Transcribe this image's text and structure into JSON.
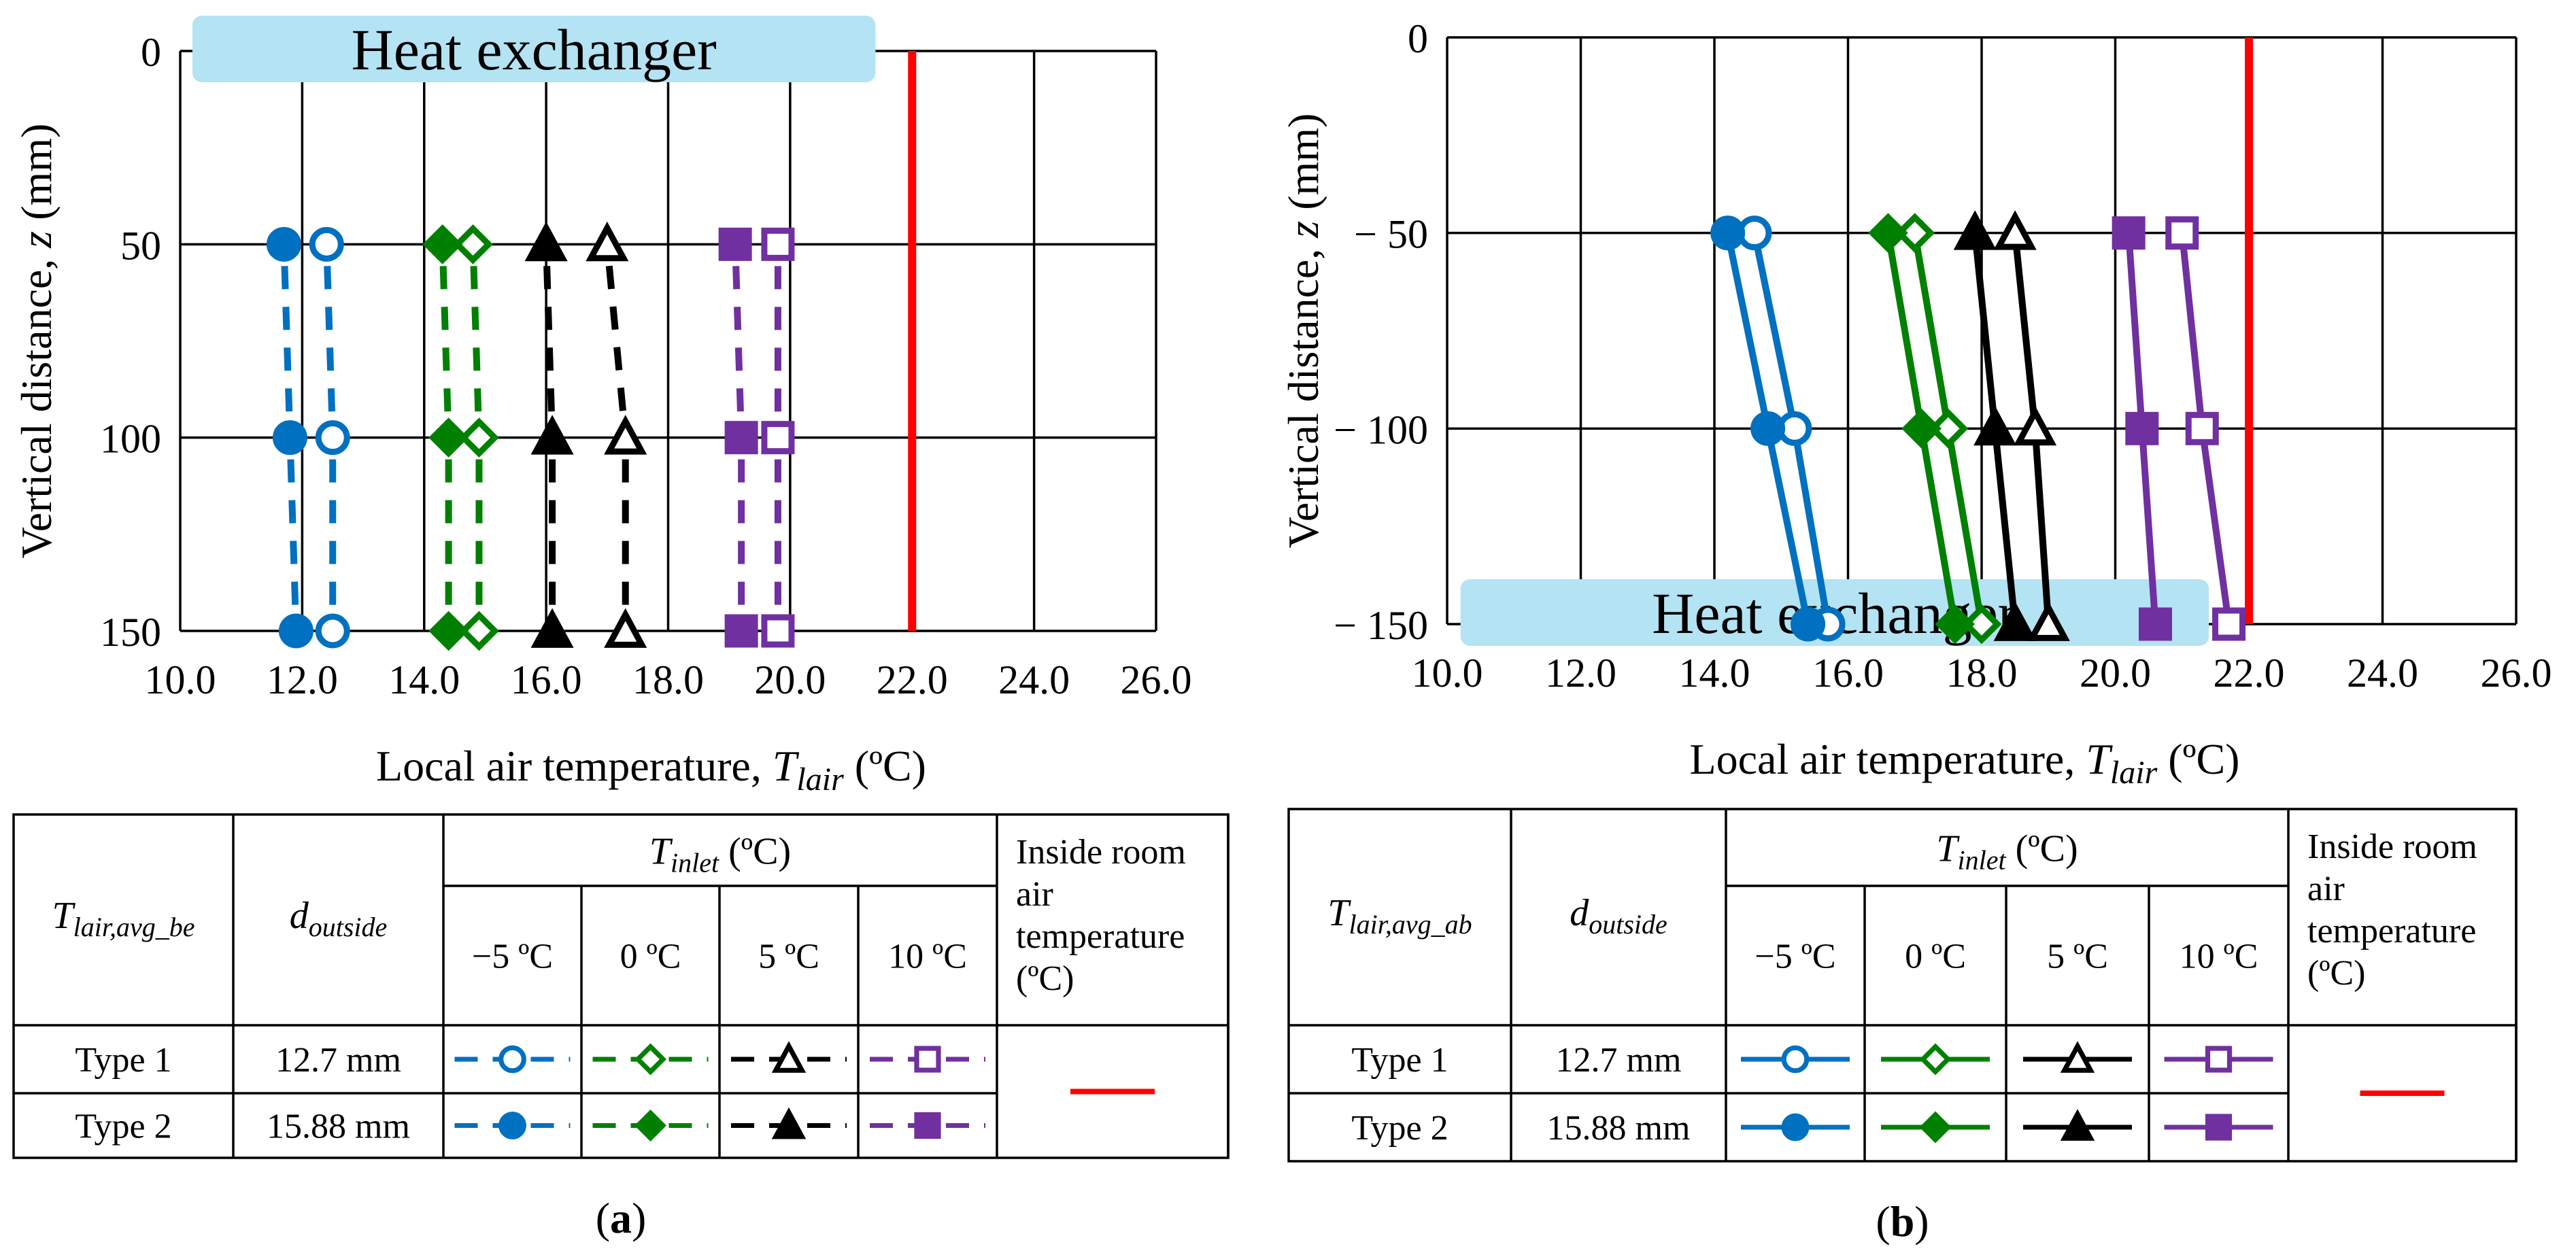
{
  "chart_data": [
    {
      "type": "line",
      "panel": "a",
      "banner": "Heat exchanger",
      "xlabel": "Local air temperature, ",
      "xlabel_var": "T_lair",
      "xlabel_unit": "(ºC)",
      "ylabel": "Vertical distance, z (mm)",
      "xlim": [
        10.0,
        26.0
      ],
      "ylim": [
        0,
        150
      ],
      "y_inverted": true,
      "xticks": [
        "10.0",
        "12.0",
        "14.0",
        "16.0",
        "18.0",
        "20.0",
        "22.0",
        "24.0",
        "26.0"
      ],
      "yticks": [
        "0",
        "50",
        "100",
        "150"
      ],
      "grid": true,
      "line_style": "dashed",
      "room_air_temperature": 22.0,
      "series": [
        {
          "type": "Type 1",
          "inlet": "−5 ºC",
          "marker": "circle-open",
          "color": "#0070c0",
          "x": [
            12.4,
            12.5,
            12.5
          ],
          "y": [
            50,
            100,
            150
          ]
        },
        {
          "type": "Type 2",
          "inlet": "−5 ºC",
          "marker": "circle-filled",
          "color": "#0070c0",
          "x": [
            11.7,
            11.8,
            11.9
          ],
          "y": [
            50,
            100,
            150
          ]
        },
        {
          "type": "Type 1",
          "inlet": "0 ºC",
          "marker": "diamond-open",
          "color": "#008000",
          "x": [
            14.8,
            14.9,
            14.9
          ],
          "y": [
            50,
            100,
            150
          ]
        },
        {
          "type": "Type 2",
          "inlet": "0 ºC",
          "marker": "diamond-filled",
          "color": "#008000",
          "x": [
            14.3,
            14.4,
            14.4
          ],
          "y": [
            50,
            100,
            150
          ]
        },
        {
          "type": "Type 1",
          "inlet": "5 ºC",
          "marker": "triangle-open",
          "color": "#000000",
          "x": [
            17.0,
            17.3,
            17.3
          ],
          "y": [
            50,
            100,
            150
          ]
        },
        {
          "type": "Type 2",
          "inlet": "5 ºC",
          "marker": "triangle-filled",
          "color": "#000000",
          "x": [
            16.0,
            16.1,
            16.1
          ],
          "y": [
            50,
            100,
            150
          ]
        },
        {
          "type": "Type 1",
          "inlet": "10 ºC",
          "marker": "square-open",
          "color": "#7030a0",
          "x": [
            19.8,
            19.8,
            19.8
          ],
          "y": [
            50,
            100,
            150
          ]
        },
        {
          "type": "Type 2",
          "inlet": "10 ºC",
          "marker": "square-filled",
          "color": "#7030a0",
          "x": [
            19.1,
            19.2,
            19.2
          ],
          "y": [
            50,
            100,
            150
          ]
        }
      ]
    },
    {
      "type": "line",
      "panel": "b",
      "banner": "Heat exchanger",
      "xlabel": "Local air temperature, ",
      "xlabel_var": "T_lair",
      "xlabel_unit": "(ºC)",
      "ylabel": "Vertical distance, z (mm)",
      "xlim": [
        10.0,
        26.0
      ],
      "ylim": [
        -150,
        0
      ],
      "xticks": [
        "10.0",
        "12.0",
        "14.0",
        "16.0",
        "18.0",
        "20.0",
        "22.0",
        "24.0",
        "26.0"
      ],
      "yticks": [
        "− 150",
        "− 100",
        "− 50",
        "0"
      ],
      "grid": true,
      "line_style": "solid",
      "room_air_temperature": 22.0,
      "series": [
        {
          "type": "Type 1",
          "inlet": "−5 ºC",
          "marker": "circle-open",
          "color": "#0070c0",
          "x": [
            14.6,
            15.2,
            15.7
          ],
          "y": [
            -50,
            -100,
            -150
          ]
        },
        {
          "type": "Type 2",
          "inlet": "−5 ºC",
          "marker": "circle-filled",
          "color": "#0070c0",
          "x": [
            14.2,
            14.8,
            15.4
          ],
          "y": [
            -50,
            -100,
            -150
          ]
        },
        {
          "type": "Type 1",
          "inlet": "0 ºC",
          "marker": "diamond-open",
          "color": "#008000",
          "x": [
            17.0,
            17.5,
            18.0
          ],
          "y": [
            -50,
            -100,
            -150
          ]
        },
        {
          "type": "Type 2",
          "inlet": "0 ºC",
          "marker": "diamond-filled",
          "color": "#008000",
          "x": [
            16.6,
            17.1,
            17.6
          ],
          "y": [
            -50,
            -100,
            -150
          ]
        },
        {
          "type": "Type 1",
          "inlet": "5 ºC",
          "marker": "triangle-open",
          "color": "#000000",
          "x": [
            18.5,
            18.8,
            19.0
          ],
          "y": [
            -50,
            -100,
            -150
          ]
        },
        {
          "type": "Type 2",
          "inlet": "5 ºC",
          "marker": "triangle-filled",
          "color": "#000000",
          "x": [
            17.9,
            18.2,
            18.5
          ],
          "y": [
            -50,
            -100,
            -150
          ]
        },
        {
          "type": "Type 1",
          "inlet": "10 ºC",
          "marker": "square-open",
          "color": "#7030a0",
          "x": [
            21.0,
            21.3,
            21.7
          ],
          "y": [
            -50,
            -100,
            -150
          ]
        },
        {
          "type": "Type 2",
          "inlet": "10 ºC",
          "marker": "square-filled",
          "color": "#7030a0",
          "x": [
            20.2,
            20.4,
            20.6
          ],
          "y": [
            -50,
            -100,
            -150
          ]
        }
      ]
    }
  ],
  "legends": [
    {
      "label_var": "T_lair,avg_be",
      "d_label": "d_outside",
      "inlet_header": "T_inlet",
      "inlet_unit": "(ºC)",
      "inlet_cols": [
        "−5 ºC",
        "0 ºC",
        "5 ºC",
        "10 ºC"
      ],
      "room_header": [
        "Inside room",
        "air",
        "temperature",
        "(ºC)"
      ],
      "rows": [
        {
          "type": "Type 1",
          "d": "12.7 mm"
        },
        {
          "type": "Type 2",
          "d": "15.88 mm"
        }
      ],
      "line_style": "dashed",
      "caption": "a"
    },
    {
      "label_var": "T_lair,avg_ab",
      "d_label": "d_outside",
      "inlet_header": "T_inlet",
      "inlet_unit": "(ºC)",
      "inlet_cols": [
        "−5 ºC",
        "0 ºC",
        "5 ºC",
        "10 ºC"
      ],
      "room_header": [
        "Inside room",
        "air",
        "temperature",
        "(ºC)"
      ],
      "rows": [
        {
          "type": "Type 1",
          "d": "12.7 mm"
        },
        {
          "type": "Type 2",
          "d": "15.88 mm"
        }
      ],
      "line_style": "solid",
      "caption": "b"
    }
  ],
  "colors": {
    "blue": "#0070c0",
    "green": "#008000",
    "black": "#000000",
    "purple": "#7030a0",
    "room_line": "#ff0000",
    "banner_fill": "#b4e3f3"
  }
}
